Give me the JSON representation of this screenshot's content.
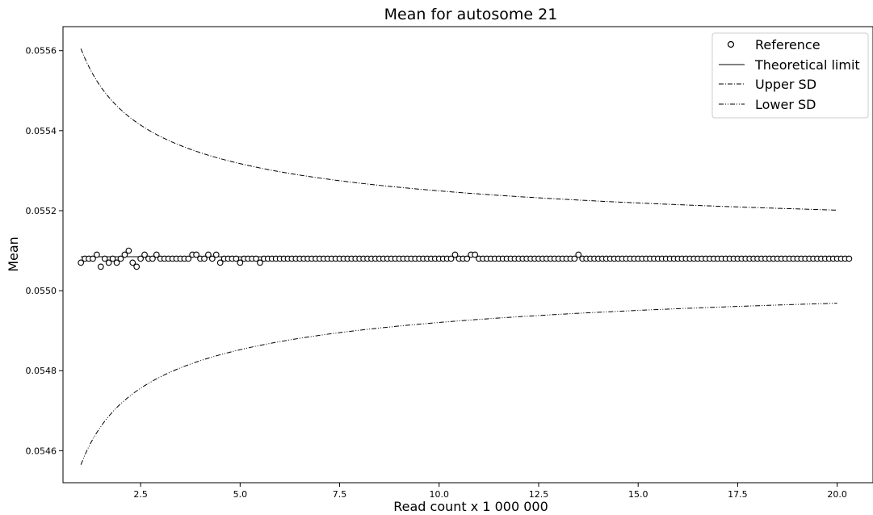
{
  "chart_data": {
    "type": "line",
    "title": "Mean for autosome 21",
    "xlabel": "Read count x 1 000 000",
    "ylabel": "Mean",
    "xlim": [
      0.55,
      20.9
    ],
    "ylim": [
      0.05452,
      0.05566
    ],
    "x_ticks": [
      2.5,
      5.0,
      7.5,
      10.0,
      12.5,
      15.0,
      17.5,
      20.0
    ],
    "x_tick_labels": [
      "2.5",
      "5.0",
      "7.5",
      "10.0",
      "12.5",
      "15.0",
      "17.5",
      "20.0"
    ],
    "y_ticks": [
      0.0546,
      0.0548,
      0.055,
      0.0552,
      0.0554,
      0.0556
    ],
    "y_tick_labels": [
      "0.0546",
      "0.0548",
      "0.0550",
      "0.0552",
      "0.0554",
      "0.0556"
    ],
    "grid": false,
    "legend_position": "top-right",
    "theoretical_limit": 0.055085,
    "sd_coefficient": 0.00052,
    "x_range": [
      1.0,
      20.0
    ],
    "series": [
      {
        "name": "Reference",
        "style": "markers",
        "x_start": 1.0,
        "x_step": 0.1,
        "y": [
          0.05507,
          0.05508,
          0.05508,
          0.05508,
          0.05509,
          0.05506,
          0.05508,
          0.05507,
          0.05508,
          0.05507,
          0.05508,
          0.05509,
          0.0551,
          0.05507,
          0.05506,
          0.05508,
          0.05509,
          0.05508,
          0.05508,
          0.05509,
          0.05508,
          0.05508,
          0.05508,
          0.05508,
          0.05508,
          0.05508,
          0.05508,
          0.05508,
          0.05509,
          0.05509,
          0.05508,
          0.05508,
          0.05509,
          0.05508,
          0.05509,
          0.05507,
          0.05508,
          0.05508,
          0.05508,
          0.05508,
          0.05507,
          0.05508,
          0.05508,
          0.05508,
          0.05508,
          0.05507,
          0.05508,
          0.05508,
          0.05508,
          0.05508,
          0.05508,
          0.05508,
          0.05508,
          0.05508,
          0.05508,
          0.05508,
          0.05508,
          0.05508,
          0.05508,
          0.05508,
          0.05508,
          0.05508,
          0.05508,
          0.05508,
          0.05508,
          0.05508,
          0.05508,
          0.05508,
          0.05508,
          0.05508,
          0.05508,
          0.05508,
          0.05508,
          0.05508,
          0.05508,
          0.05508,
          0.05508,
          0.05508,
          0.05508,
          0.05508,
          0.05508,
          0.05508,
          0.05508,
          0.05508,
          0.05508,
          0.05508,
          0.05508,
          0.05508,
          0.05508,
          0.05508,
          0.05508,
          0.05508,
          0.05508,
          0.05508,
          0.05509,
          0.05508,
          0.05508,
          0.05508,
          0.05509,
          0.05509,
          0.05508,
          0.05508,
          0.05508,
          0.05508,
          0.05508,
          0.05508,
          0.05508,
          0.05508,
          0.05508,
          0.05508,
          0.05508,
          0.05508,
          0.05508,
          0.05508,
          0.05508,
          0.05508,
          0.05508,
          0.05508,
          0.05508,
          0.05508,
          0.05508,
          0.05508,
          0.05508,
          0.05508,
          0.05508,
          0.05509,
          0.05508,
          0.05508,
          0.05508,
          0.05508,
          0.05508,
          0.05508,
          0.05508,
          0.05508,
          0.05508,
          0.05508,
          0.05508,
          0.05508,
          0.05508,
          0.05508,
          0.05508,
          0.05508,
          0.05508,
          0.05508,
          0.05508,
          0.05508,
          0.05508,
          0.05508,
          0.05508,
          0.05508,
          0.05508,
          0.05508,
          0.05508,
          0.05508,
          0.05508,
          0.05508,
          0.05508,
          0.05508,
          0.05508,
          0.05508,
          0.05508,
          0.05508,
          0.05508,
          0.05508,
          0.05508,
          0.05508,
          0.05508,
          0.05508,
          0.05508,
          0.05508,
          0.05508,
          0.05508,
          0.05508,
          0.05508,
          0.05508,
          0.05508,
          0.05508,
          0.05508,
          0.05508,
          0.05508,
          0.05508,
          0.05508,
          0.05508,
          0.05508,
          0.05508,
          0.05508,
          0.05508,
          0.05508,
          0.05508,
          0.05508,
          0.05508,
          0.05508,
          0.05508,
          0.05508
        ]
      },
      {
        "name": "Theoretical limit",
        "style": "solid"
      },
      {
        "name": "Upper SD",
        "style": "dashdot"
      },
      {
        "name": "Lower SD",
        "style": "dashdotdot"
      }
    ]
  }
}
